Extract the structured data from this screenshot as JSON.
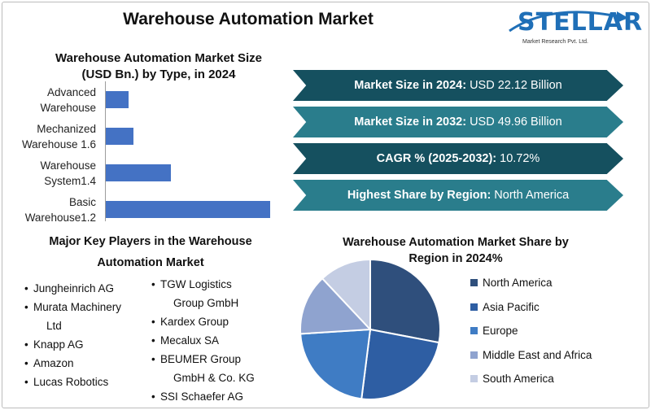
{
  "header": {
    "title": "Warehouse Automation Market",
    "logo_word": "STELLAR",
    "logo_sub": "Market Research Pvt. Ltd."
  },
  "bar_chart": {
    "title_line1": "Warehouse Automation Market Size",
    "title_line2": "(USD Bn.) by Type, in 2024",
    "categories": [
      {
        "line1": "Advanced",
        "line2": "Warehouse"
      },
      {
        "line1": "Mechanized",
        "line2": "Warehouse 1.6"
      },
      {
        "line1": "Warehouse",
        "line2": "System1.4"
      },
      {
        "line1": "Basic",
        "line2": "Warehouse1.2"
      }
    ]
  },
  "stats": [
    {
      "label": "Market Size in 2024:",
      "value": "USD 22.12 Billion"
    },
    {
      "label": "Market Size in 2032:",
      "value": "USD 49.96 Billion"
    },
    {
      "label": "CAGR % (2025-2032):",
      "value": "10.72%"
    },
    {
      "label": "Highest Share by Region:",
      "value": "North America"
    }
  ],
  "players": {
    "title_line1": "Major Key Players in the Warehouse",
    "title_line2": "Automation Market",
    "col1": [
      "Jungheinrich AG",
      "Murata Machinery",
      "Ltd",
      "Knapp AG",
      "Amazon",
      "Lucas Robotics"
    ],
    "col2": [
      "TGW Logistics",
      "Group GmbH",
      "Kardex Group",
      "Mecalux SA",
      "BEUMER Group",
      "GmbH & Co. KG",
      "SSI Schaefer AG"
    ]
  },
  "pie": {
    "title_line1": "Warehouse Automation Market Share by",
    "title_line2": "Region in 2024%"
  },
  "colors": {
    "bar": "#4472c4",
    "arrow_dark": "#15505f",
    "arrow_light": "#2a7d8c",
    "logo": "#1f6fb7"
  },
  "chart_data": [
    {
      "type": "bar",
      "orientation": "horizontal",
      "title": "Warehouse Automation Market Size (USD Bn.) by Type, in 2024",
      "categories": [
        "Advanced Warehouse",
        "Mechanized Warehouse 1.6",
        "Warehouse System1.4",
        "Basic Warehouse1.2"
      ],
      "values": [
        0.9,
        1.1,
        2.6,
        6.6
      ],
      "xlim": [
        0,
        6.6
      ],
      "grid": false
    },
    {
      "type": "pie",
      "title": "Warehouse Automation Market Share by Region in 2024%",
      "labels": [
        "North America",
        "Asia Pacific",
        "Europe",
        "Middle East and Africa",
        "South America"
      ],
      "values": [
        28,
        24,
        22,
        14,
        12
      ],
      "colors": [
        "#2f4f7c",
        "#2e5ea3",
        "#3f7cc4",
        "#8fa3cf",
        "#c4cde3"
      ],
      "legend": "right"
    }
  ]
}
